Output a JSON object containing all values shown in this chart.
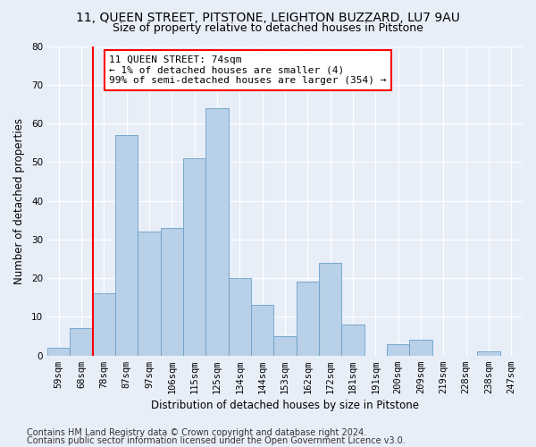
{
  "title1": "11, QUEEN STREET, PITSTONE, LEIGHTON BUZZARD, LU7 9AU",
  "title2": "Size of property relative to detached houses in Pitstone",
  "xlabel": "Distribution of detached houses by size in Pitstone",
  "ylabel": "Number of detached properties",
  "categories": [
    "59sqm",
    "68sqm",
    "78sqm",
    "87sqm",
    "97sqm",
    "106sqm",
    "115sqm",
    "125sqm",
    "134sqm",
    "144sqm",
    "153sqm",
    "162sqm",
    "172sqm",
    "181sqm",
    "191sqm",
    "200sqm",
    "209sqm",
    "219sqm",
    "228sqm",
    "238sqm",
    "247sqm"
  ],
  "values": [
    2,
    7,
    16,
    57,
    32,
    33,
    51,
    64,
    20,
    13,
    5,
    19,
    24,
    8,
    0,
    3,
    4,
    0,
    0,
    1,
    0
  ],
  "bar_color": "#b8d0e8",
  "bar_edge_color": "#6aa0c8",
  "red_line_x": 1.5,
  "annotation_text": "11 QUEEN STREET: 74sqm\n← 1% of detached houses are smaller (4)\n99% of semi-detached houses are larger (354) →",
  "annotation_box_color": "white",
  "annotation_box_edge": "red",
  "red_line_color": "red",
  "ylim": [
    0,
    80
  ],
  "yticks": [
    0,
    10,
    20,
    30,
    40,
    50,
    60,
    70,
    80
  ],
  "footer1": "Contains HM Land Registry data © Crown copyright and database right 2024.",
  "footer2": "Contains public sector information licensed under the Open Government Licence v3.0.",
  "bg_color": "#e8eef8",
  "grid_color": "white",
  "title1_fontsize": 10,
  "title2_fontsize": 9,
  "xlabel_fontsize": 8.5,
  "ylabel_fontsize": 8.5,
  "tick_fontsize": 7.5,
  "footer_fontsize": 7,
  "annot_fontsize": 8
}
